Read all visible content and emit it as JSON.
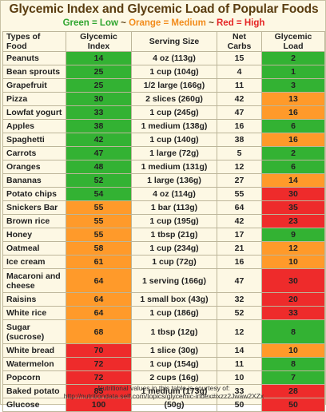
{
  "title": "Glycemic Index and Glycemic Load of Popular Foods",
  "legend": {
    "green": "Green = Low",
    "orange": "Orange = Medium",
    "red": "Red = High",
    "separator": "~",
    "colors": {
      "green": "#33b233",
      "orange": "#ff9a2a",
      "red": "#ee2b2b"
    }
  },
  "table": {
    "headers": [
      "Types of Food",
      "Glycemic Index",
      "Serving Size",
      "Net Carbs",
      "Glycemic Load"
    ],
    "rows": [
      {
        "food": "Peanuts",
        "gi": "14",
        "gi_level": "green",
        "serving": "4 oz (113g)",
        "carbs": "15",
        "gl": "2",
        "gl_level": "green"
      },
      {
        "food": "Bean sprouts",
        "gi": "25",
        "gi_level": "green",
        "serving": "1 cup (104g)",
        "carbs": "4",
        "gl": "1",
        "gl_level": "green"
      },
      {
        "food": "Grapefruit",
        "gi": "25",
        "gi_level": "green",
        "serving": "1/2 large (166g)",
        "carbs": "11",
        "gl": "3",
        "gl_level": "green"
      },
      {
        "food": "Pizza",
        "gi": "30",
        "gi_level": "green",
        "serving": "2 slices (260g)",
        "carbs": "42",
        "gl": "13",
        "gl_level": "orange"
      },
      {
        "food": "Lowfat yogurt",
        "gi": "33",
        "gi_level": "green",
        "serving": "1 cup (245g)",
        "carbs": "47",
        "gl": "16",
        "gl_level": "orange"
      },
      {
        "food": "Apples",
        "gi": "38",
        "gi_level": "green",
        "serving": "1 medium (138g)",
        "carbs": "16",
        "gl": "6",
        "gl_level": "green"
      },
      {
        "food": "Spaghetti",
        "gi": "42",
        "gi_level": "green",
        "serving": "1 cup (140g)",
        "carbs": "38",
        "gl": "16",
        "gl_level": "orange"
      },
      {
        "food": "Carrots",
        "gi": "47",
        "gi_level": "green",
        "serving": "1 large (72g)",
        "carbs": "5",
        "gl": "2",
        "gl_level": "green"
      },
      {
        "food": "Oranges",
        "gi": "48",
        "gi_level": "green",
        "serving": "1 medium (131g)",
        "carbs": "12",
        "gl": "6",
        "gl_level": "green"
      },
      {
        "food": "Bananas",
        "gi": "52",
        "gi_level": "green",
        "serving": "1 large (136g)",
        "carbs": "27",
        "gl": "14",
        "gl_level": "orange"
      },
      {
        "food": "Potato chips",
        "gi": "54",
        "gi_level": "green",
        "serving": "4 oz (114g)",
        "carbs": "55",
        "gl": "30",
        "gl_level": "red"
      },
      {
        "food": "Snickers Bar",
        "gi": "55",
        "gi_level": "orange",
        "serving": "1 bar (113g)",
        "carbs": "64",
        "gl": "35",
        "gl_level": "red"
      },
      {
        "food": "Brown rice",
        "gi": "55",
        "gi_level": "orange",
        "serving": "1 cup (195g)",
        "carbs": "42",
        "gl": "23",
        "gl_level": "red"
      },
      {
        "food": "Honey",
        "gi": "55",
        "gi_level": "orange",
        "serving": "1 tbsp (21g)",
        "carbs": "17",
        "gl": "9",
        "gl_level": "green"
      },
      {
        "food": "Oatmeal",
        "gi": "58",
        "gi_level": "orange",
        "serving": "1 cup (234g)",
        "carbs": "21",
        "gl": "12",
        "gl_level": "orange"
      },
      {
        "food": "Ice cream",
        "gi": "61",
        "gi_level": "orange",
        "serving": "1 cup (72g)",
        "carbs": "16",
        "gl": "10",
        "gl_level": "orange"
      },
      {
        "food": "Macaroni and cheese",
        "gi": "64",
        "gi_level": "orange",
        "serving": "1 serving (166g)",
        "carbs": "47",
        "gl": "30",
        "gl_level": "red",
        "tall": true
      },
      {
        "food": "Raisins",
        "gi": "64",
        "gi_level": "orange",
        "serving": "1 small box (43g)",
        "carbs": "32",
        "gl": "20",
        "gl_level": "red"
      },
      {
        "food": "White rice",
        "gi": "64",
        "gi_level": "orange",
        "serving": "1 cup (186g)",
        "carbs": "52",
        "gl": "33",
        "gl_level": "red"
      },
      {
        "food": "Sugar (sucrose)",
        "gi": "68",
        "gi_level": "orange",
        "serving": "1 tbsp (12g)",
        "carbs": "12",
        "gl": "8",
        "gl_level": "green",
        "tall": true
      },
      {
        "food": "White bread",
        "gi": "70",
        "gi_level": "red",
        "serving": "1 slice (30g)",
        "carbs": "14",
        "gl": "10",
        "gl_level": "orange"
      },
      {
        "food": "Watermelon",
        "gi": "72",
        "gi_level": "red",
        "serving": "1 cup (154g)",
        "carbs": "11",
        "gl": "8",
        "gl_level": "green"
      },
      {
        "food": "Popcorn",
        "gi": "72",
        "gi_level": "red",
        "serving": "2 cups (16g)",
        "carbs": "10",
        "gl": "7",
        "gl_level": "green"
      },
      {
        "food": "Baked potato",
        "gi": "85",
        "gi_level": "red",
        "serving": "1 medium (173g)",
        "carbs": "33",
        "gl": "28",
        "gl_level": "red"
      },
      {
        "food": "Glucose",
        "gi": "100",
        "gi_level": "red",
        "serving": "(50g)",
        "carbs": "50",
        "gl": "50",
        "gl_level": "red"
      }
    ]
  },
  "footer": {
    "line1": "Nutritional values in this table is courtesy of:",
    "line2": "http://nutritiondata.self.com/topics/glycemic-index#ixzz2Jwaw2XZx"
  }
}
